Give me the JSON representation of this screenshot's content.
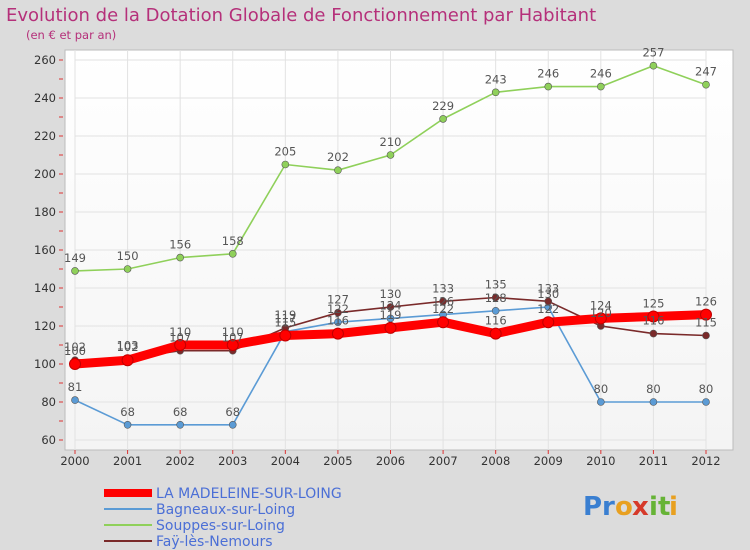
{
  "chart_data": {
    "type": "line",
    "title": "Evolution de la Dotation Globale de Fonctionnement par Habitant",
    "subtitle": "(en € et par an)",
    "x": [
      "2000",
      "2001",
      "2002",
      "2003",
      "2004",
      "2005",
      "2006",
      "2007",
      "2008",
      "2009",
      "2010",
      "2011",
      "2012"
    ],
    "ylim": [
      60,
      260
    ],
    "yticks": [
      "60",
      "80",
      "100",
      "120",
      "140",
      "160",
      "180",
      "200",
      "220",
      "240",
      "260"
    ],
    "grid": true,
    "legend_position": "bottom-left",
    "series": [
      {
        "name": "LA MADELEINE-SUR-LOING",
        "color": "#ff0000",
        "values": [
          100,
          102,
          110,
          110,
          115,
          116,
          119,
          122,
          116,
          122,
          124,
          125,
          126
        ],
        "labels": [
          "100",
          "102",
          "110",
          "110",
          "115",
          "116",
          "119",
          "122",
          "116",
          "122",
          "124",
          "125",
          "126"
        ]
      },
      {
        "name": "Bagneaux-sur-Loing",
        "color": "#5b9bd5",
        "values": [
          81,
          68,
          68,
          68,
          117,
          122,
          124,
          126,
          128,
          130,
          80,
          80,
          80
        ],
        "labels": [
          "81",
          "68",
          "68",
          "68",
          "117",
          "122",
          "124",
          "126",
          "128",
          "130",
          "80",
          "80",
          "80"
        ]
      },
      {
        "name": "Souppes-sur-Loing",
        "color": "#8fd05a",
        "values": [
          149,
          150,
          156,
          158,
          205,
          202,
          210,
          229,
          243,
          246,
          246,
          257,
          247
        ],
        "labels": [
          "149",
          "150",
          "156",
          "158",
          "205",
          "202",
          "210",
          "229",
          "243",
          "246",
          "246",
          "257",
          "247"
        ]
      },
      {
        "name": "Faÿ-lès-Nemours",
        "color": "#7a2a2a",
        "values": [
          102,
          103,
          107,
          107,
          119,
          127,
          130,
          133,
          135,
          133,
          120,
          116,
          115
        ],
        "labels": [
          "102",
          "103",
          "107",
          "107",
          "119",
          "127",
          "130",
          "133",
          "135",
          "133",
          "120",
          "116",
          "115"
        ]
      }
    ]
  },
  "logo": {
    "text": "Proxiti",
    "letters": [
      "P",
      "r",
      "o",
      "x",
      "i",
      "t",
      "i"
    ],
    "colors": [
      "#3a7fd1",
      "#3a7fd1",
      "#e8a020",
      "#d63a2a",
      "#66b336",
      "#66b336",
      "#e8a020"
    ]
  }
}
